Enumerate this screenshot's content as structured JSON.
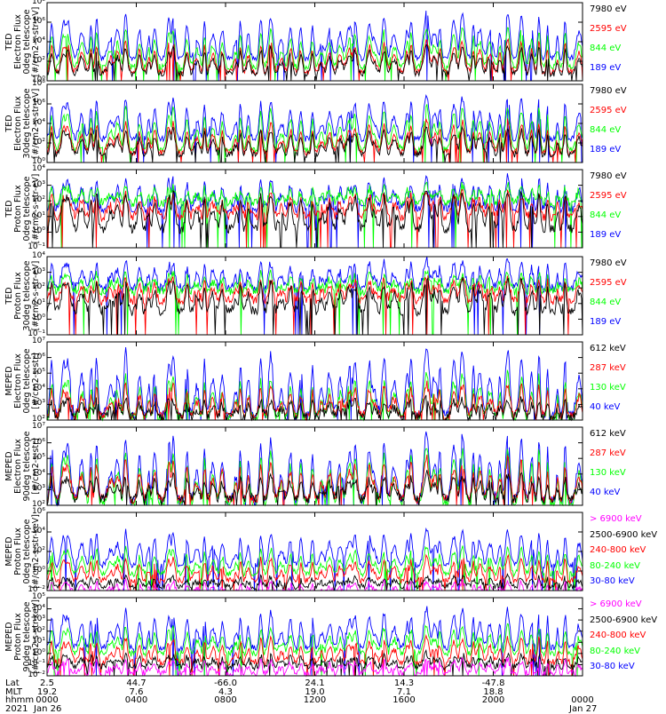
{
  "colors": {
    "black": "#000000",
    "red": "#ff0000",
    "green": "#00ff00",
    "blue": "#0000ff",
    "magenta": "#ff00ff"
  },
  "chart_data": [
    {
      "type": "line",
      "panel": 1,
      "ylabel": [
        "TED",
        "Electron Flux",
        "0deg telescope",
        "[#/cm2-s-str-eV]"
      ],
      "ylog": true,
      "ylim": [
        1,
        100000000.0
      ],
      "ytick_exponents": [
        0,
        2,
        4,
        6,
        8
      ],
      "series": [
        {
          "name": "7980 eV",
          "color": "#000000",
          "baseline_exp": 0.7,
          "peak_exp": 3.6
        },
        {
          "name": "2595 eV",
          "color": "#ff0000",
          "baseline_exp": 0.9,
          "peak_exp": 4.2
        },
        {
          "name": "844 eV",
          "color": "#00ff00",
          "baseline_exp": 1.4,
          "peak_exp": 5.5
        },
        {
          "name": "189 eV",
          "color": "#0000ff",
          "baseline_exp": 2.3,
          "peak_exp": 7.0
        }
      ]
    },
    {
      "type": "line",
      "panel": 2,
      "ylabel": [
        "TED",
        "Electron Flux",
        "30deg telescope",
        "[#/cm2-s-str-eV]"
      ],
      "ylog": true,
      "ylim": [
        1,
        100000000.0
      ],
      "ytick_exponents": [
        0,
        2,
        4,
        6,
        8
      ],
      "series": [
        {
          "name": "7980 eV",
          "color": "#000000",
          "baseline_exp": 0.8,
          "peak_exp": 3.6
        },
        {
          "name": "2595 eV",
          "color": "#ff0000",
          "baseline_exp": 1.0,
          "peak_exp": 4.3
        },
        {
          "name": "844 eV",
          "color": "#00ff00",
          "baseline_exp": 1.3,
          "peak_exp": 5.8
        },
        {
          "name": "189 eV",
          "color": "#0000ff",
          "baseline_exp": 2.4,
          "peak_exp": 6.8
        }
      ]
    },
    {
      "type": "line",
      "panel": 3,
      "ylabel": [
        "TED",
        "Proton Flux",
        "0deg telescope",
        "[#/cm2-s-str-eV]"
      ],
      "ylog": true,
      "ylim": [
        0.1,
        10000.0
      ],
      "ytick_exponents": [
        -1,
        0,
        1,
        2,
        3,
        4
      ],
      "series": [
        {
          "name": "7980 eV",
          "color": "#000000",
          "baseline_exp": 0.2,
          "peak_exp": 2.7
        },
        {
          "name": "2595 eV",
          "color": "#ff0000",
          "baseline_exp": 1.0,
          "peak_exp": 2.6
        },
        {
          "name": "844 eV",
          "color": "#00ff00",
          "baseline_exp": 1.9,
          "peak_exp": 3.0
        },
        {
          "name": "189 eV",
          "color": "#0000ff",
          "baseline_exp": 1.5,
          "peak_exp": 3.6
        }
      ]
    },
    {
      "type": "line",
      "panel": 4,
      "ylabel": [
        "TED",
        "Proton Flux",
        "30deg telescope",
        "[#/cm2-s-str-eV]"
      ],
      "ylog": true,
      "ylim": [
        0.1,
        10000.0
      ],
      "ytick_exponents": [
        -1,
        0,
        1,
        2,
        3,
        4
      ],
      "series": [
        {
          "name": "7980 eV",
          "color": "#000000",
          "baseline_exp": 0.5,
          "peak_exp": 2.6
        },
        {
          "name": "2595 eV",
          "color": "#ff0000",
          "baseline_exp": 1.2,
          "peak_exp": 2.7
        },
        {
          "name": "844 eV",
          "color": "#00ff00",
          "baseline_exp": 1.8,
          "peak_exp": 3.0
        },
        {
          "name": "189 eV",
          "color": "#0000ff",
          "baseline_exp": 2.0,
          "peak_exp": 3.8
        }
      ]
    },
    {
      "type": "line",
      "panel": 5,
      "ylabel": [
        "MEPED",
        "Electron Flux",
        "0deg telescope",
        "[#/cm2-s-str]"
      ],
      "ylog": true,
      "ylim": [
        100,
        10000000.0
      ],
      "ytick_exponents": [
        2,
        3,
        4,
        5,
        6,
        7
      ],
      "series": [
        {
          "name": "612 keV",
          "color": "#000000",
          "baseline_exp": 2.2,
          "peak_exp": 3.4
        },
        {
          "name": "287 keV",
          "color": "#ff0000",
          "baseline_exp": 2.3,
          "peak_exp": 4.3
        },
        {
          "name": "130 keV",
          "color": "#00ff00",
          "baseline_exp": 2.1,
          "peak_exp": 5.0
        },
        {
          "name": "40 keV",
          "color": "#0000ff",
          "baseline_exp": 2.3,
          "peak_exp": 6.6
        }
      ]
    },
    {
      "type": "line",
      "panel": 6,
      "ylabel": [
        "MEPED",
        "Electron Flux",
        "90deg telescope",
        "[#/cm2-s-str]"
      ],
      "ylog": true,
      "ylim": [
        100,
        10000000.0
      ],
      "ytick_exponents": [
        2,
        3,
        4,
        5,
        6,
        7
      ],
      "series": [
        {
          "name": "612 keV",
          "color": "#000000",
          "baseline_exp": 2.4,
          "peak_exp": 4.0
        },
        {
          "name": "287 keV",
          "color": "#ff0000",
          "baseline_exp": 2.4,
          "peak_exp": 5.0
        },
        {
          "name": "130 keV",
          "color": "#00ff00",
          "baseline_exp": 2.1,
          "peak_exp": 5.6
        },
        {
          "name": "40 keV",
          "color": "#0000ff",
          "baseline_exp": 2.3,
          "peak_exp": 6.6
        }
      ]
    },
    {
      "type": "line",
      "panel": 7,
      "ylabel": [
        "MEPED",
        "Proton Flux",
        "0deg telescope",
        "[#/cm2-s-str-keV]"
      ],
      "ylog": true,
      "ylim": [
        0.01,
        1000000.0
      ],
      "ytick_exponents": [
        -2,
        0,
        2,
        4,
        6
      ],
      "series": [
        {
          "name": "> 6900 keV",
          "color": "#ff00ff",
          "baseline_exp": -2.4,
          "peak_exp": -1.0
        },
        {
          "name": "2500-6900 keV",
          "color": "#000000",
          "baseline_exp": -1.6,
          "peak_exp": -0.5
        },
        {
          "name": "240-800 keV",
          "color": "#ff0000",
          "baseline_exp": -1.0,
          "peak_exp": 1.5
        },
        {
          "name": "80-240 keV",
          "color": "#00ff00",
          "baseline_exp": -0.3,
          "peak_exp": 2.5
        },
        {
          "name": "30-80 keV",
          "color": "#0000ff",
          "baseline_exp": 0.6,
          "peak_exp": 4.3
        }
      ]
    },
    {
      "type": "line",
      "panel": 8,
      "ylabel": [
        "MEPED",
        "Proton Flux",
        "90deg telescope",
        "[#/cm2-s-str-keV]"
      ],
      "ylog": true,
      "ylim": [
        0.01,
        100000.0
      ],
      "ytick_exponents": [
        -2,
        -1,
        0,
        1,
        2,
        3,
        4,
        5
      ],
      "series": [
        {
          "name": "> 6900 keV",
          "color": "#ff00ff",
          "baseline_exp": -1.8,
          "peak_exp": -0.5
        },
        {
          "name": "2500-6900 keV",
          "color": "#000000",
          "baseline_exp": -1.2,
          "peak_exp": 0.0
        },
        {
          "name": "240-800 keV",
          "color": "#ff0000",
          "baseline_exp": -0.8,
          "peak_exp": 1.5
        },
        {
          "name": "80-240 keV",
          "color": "#00ff00",
          "baseline_exp": 0.0,
          "peak_exp": 2.5
        },
        {
          "name": "30-80 keV",
          "color": "#0000ff",
          "baseline_exp": 0.5,
          "peak_exp": 4.0
        }
      ]
    }
  ],
  "x_axis": {
    "row_labels": [
      "Lat",
      "MLT",
      "hhmm",
      "2021"
    ],
    "ticks": [
      {
        "lat": "2.5",
        "mlt": "19.2",
        "hhmm": "0000",
        "date": "Jan 26"
      },
      {
        "lat": "44.7",
        "mlt": "7.6",
        "hhmm": "0400",
        "date": ""
      },
      {
        "lat": "-66.0",
        "mlt": "4.3",
        "hhmm": "0800",
        "date": ""
      },
      {
        "lat": "24.1",
        "mlt": "19.0",
        "hhmm": "1200",
        "date": ""
      },
      {
        "lat": "14.3",
        "mlt": "7.1",
        "hhmm": "1600",
        "date": ""
      },
      {
        "lat": "-47.8",
        "mlt": "18.8",
        "hhmm": "2000",
        "date": ""
      },
      {
        "lat": "",
        "mlt": "",
        "hhmm": "0000",
        "date": "Jan 27"
      }
    ],
    "range_hours": [
      0,
      24
    ]
  }
}
